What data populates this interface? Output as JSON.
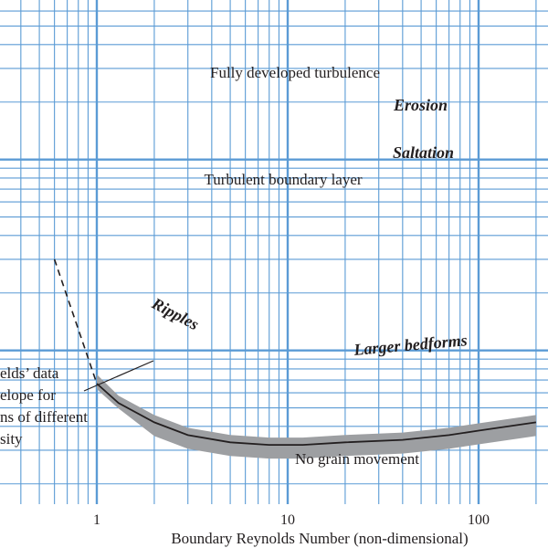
{
  "chart_data": {
    "type": "line",
    "x_scale": "log",
    "y_scale": "log",
    "xlabel": "Boundary Reynolds Number (non-dimensional)",
    "ylabel": "",
    "title": "",
    "x_ticks": [
      "1",
      "10",
      "100"
    ],
    "grid": true,
    "grid_color": "#5b9bd5",
    "curve_color": "#231f20",
    "envelope_color": "#9d9fa2",
    "region_labels": {
      "fully_developed": "Fully developed turbulence",
      "erosion": "Erosion",
      "saltation": "Saltation",
      "turbulent_layer": "Turbulent boundary layer",
      "ripples": "Ripples",
      "larger_bedforms": "Larger bedforms",
      "no_movement": "No grain movement"
    },
    "annotation_lines": [
      "elds’ data",
      "elope for",
      "ns of different",
      "sity"
    ],
    "series": [
      {
        "style": "dashed",
        "x": [
          0.6,
          1.0
        ],
        "y": [
          0.3,
          0.067
        ]
      },
      {
        "style": "solid",
        "x": [
          1.0,
          1.3,
          2.0,
          3.0,
          5.0,
          8.0,
          12,
          20,
          40,
          70,
          100,
          200
        ],
        "y": [
          0.067,
          0.053,
          0.042,
          0.036,
          0.033,
          0.032,
          0.032,
          0.033,
          0.034,
          0.036,
          0.038,
          0.042
        ]
      }
    ]
  }
}
